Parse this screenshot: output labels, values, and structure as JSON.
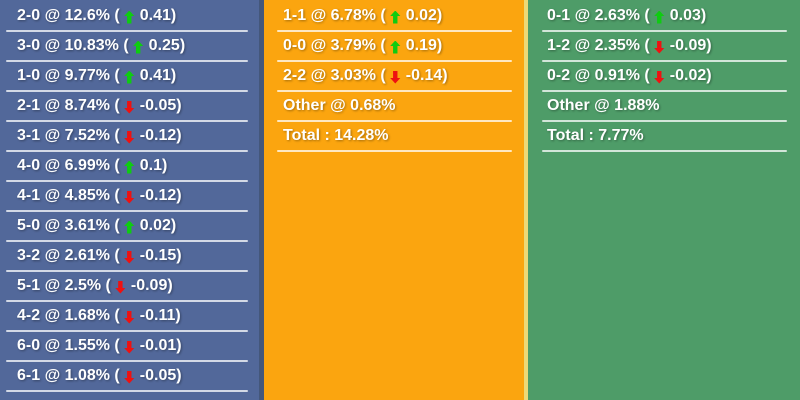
{
  "colors": {
    "home_bg": "#52689A",
    "draw_bg": "#FBA50F",
    "away_bg": "#4E9C68",
    "home_panel_border": "#44577B",
    "away_panel_border": "#EDD977",
    "up_arrow": "#0ECC11",
    "down_arrow": "#EE1111",
    "text": "#FFFFFF",
    "divider": "rgba(255,255,255,0.75)"
  },
  "panels": [
    {
      "name": "home-win-scores",
      "bg": "#52689A",
      "rows": [
        {
          "label": "2-0 @ 12.6%",
          "direction": "up",
          "change": "0.41"
        },
        {
          "label": "3-0 @ 10.83%",
          "direction": "up",
          "change": "0.25"
        },
        {
          "label": "1-0 @ 9.77%",
          "direction": "up",
          "change": "0.41"
        },
        {
          "label": "2-1 @ 8.74%",
          "direction": "down",
          "change": "-0.05"
        },
        {
          "label": "3-1 @ 7.52%",
          "direction": "down",
          "change": "-0.12"
        },
        {
          "label": "4-0 @ 6.99%",
          "direction": "up",
          "change": "0.1"
        },
        {
          "label": "4-1 @ 4.85%",
          "direction": "down",
          "change": "-0.12"
        },
        {
          "label": "5-0 @ 3.61%",
          "direction": "up",
          "change": "0.02"
        },
        {
          "label": "3-2 @ 2.61%",
          "direction": "down",
          "change": "-0.15"
        },
        {
          "label": "5-1 @ 2.5%",
          "direction": "down",
          "change": "-0.09"
        },
        {
          "label": "4-2 @ 1.68%",
          "direction": "down",
          "change": "-0.11"
        },
        {
          "label": "6-0 @ 1.55%",
          "direction": "down",
          "change": "-0.01"
        },
        {
          "label": "6-1 @ 1.08%",
          "direction": "down",
          "change": "-0.05"
        }
      ]
    },
    {
      "name": "draw-scores",
      "bg": "#FBA50F",
      "rows": [
        {
          "label": "1-1 @ 6.78%",
          "direction": "up",
          "change": "0.02"
        },
        {
          "label": "0-0 @ 3.79%",
          "direction": "up",
          "change": "0.19"
        },
        {
          "label": "2-2 @ 3.03%",
          "direction": "down",
          "change": "-0.14"
        },
        {
          "label": "Other @ 0.68%"
        },
        {
          "label": "Total : 14.28%"
        }
      ]
    },
    {
      "name": "away-win-scores",
      "bg": "#4E9C68",
      "rows": [
        {
          "label": "0-1 @ 2.63%",
          "direction": "up",
          "change": "0.03"
        },
        {
          "label": "1-2 @ 2.35%",
          "direction": "down",
          "change": "-0.09"
        },
        {
          "label": "0-2 @ 0.91%",
          "direction": "down",
          "change": "-0.02"
        },
        {
          "label": "Other @ 1.88%"
        },
        {
          "label": "Total : 7.77%"
        }
      ]
    }
  ]
}
